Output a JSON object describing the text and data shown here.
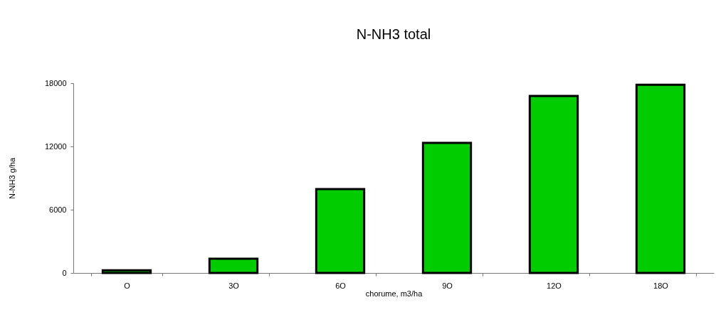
{
  "chart_data": {
    "type": "bar",
    "title": "N-NH3  total",
    "xlabel": "chorume, m3/ha",
    "ylabel": "N-NH3 g/ha",
    "categories": [
      "O",
      "3O",
      "6O",
      "9O",
      "12O",
      "18O"
    ],
    "values": [
      250,
      1350,
      7950,
      12340,
      16790,
      17850
    ],
    "color": "#00cc00",
    "ylim": [
      0,
      18000
    ],
    "yticks": [
      0,
      6000,
      12000,
      18000
    ],
    "grid": false
  }
}
